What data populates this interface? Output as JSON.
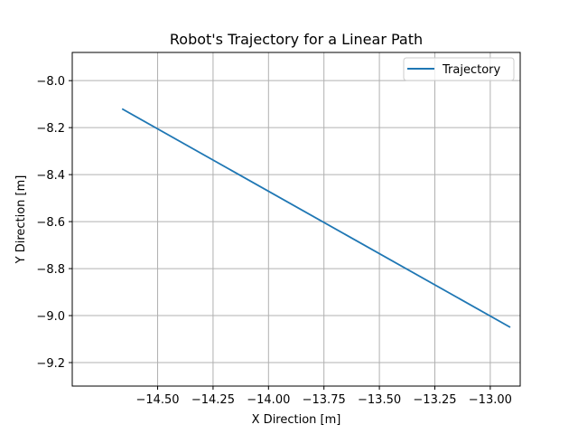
{
  "chart_data": {
    "type": "line",
    "title": "Robot's Trajectory for a Linear Path",
    "xlabel": "X Direction [m]",
    "ylabel": "Y Direction [m]",
    "xlim": [
      -14.885,
      -12.865
    ],
    "ylim": [
      -9.3,
      -7.88
    ],
    "xticks": [
      -14.5,
      -14.25,
      -14.0,
      -13.75,
      -13.5,
      -13.25,
      -13.0
    ],
    "xtick_labels": [
      "−14.50",
      "−14.25",
      "−14.00",
      "−13.75",
      "−13.50",
      "−13.25",
      "−13.00"
    ],
    "yticks": [
      -8.0,
      -8.2,
      -8.4,
      -8.6,
      -8.8,
      -9.0,
      -9.2
    ],
    "ytick_labels": [
      "−8.0",
      "−8.2",
      "−8.4",
      "−8.6",
      "−8.8",
      "−9.0",
      "−9.2"
    ],
    "grid": true,
    "legend_position": "top-right",
    "series": [
      {
        "name": "Trajectory",
        "color": "#1f77b4",
        "x": [
          -14.66,
          -12.91
        ],
        "y": [
          -8.12,
          -9.05
        ]
      }
    ]
  }
}
